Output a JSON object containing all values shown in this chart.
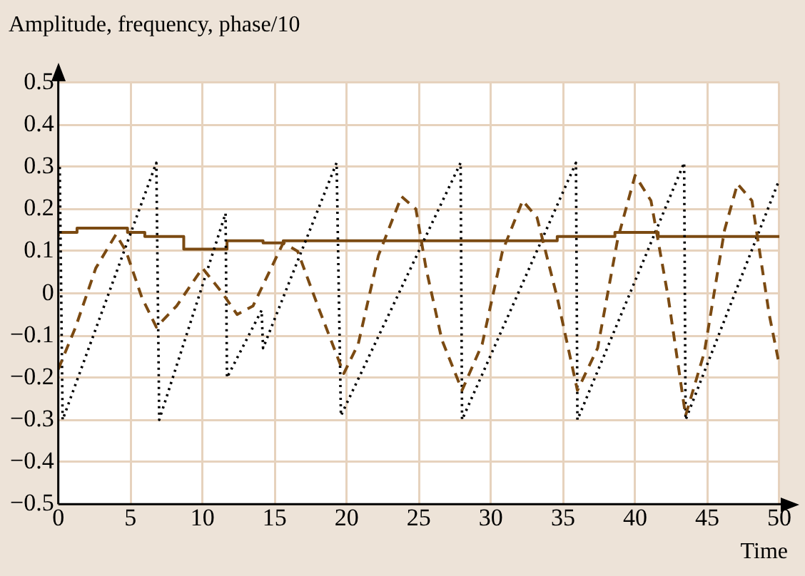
{
  "chart_data": {
    "type": "line",
    "ylabel": "Amplitude, frequency, phase/10",
    "xlabel": "Time",
    "xlim": [
      0,
      50
    ],
    "xticks": [
      0,
      5,
      10,
      15,
      20,
      25,
      30,
      35,
      40,
      45,
      50
    ],
    "ylim": [
      -0.5,
      0.5
    ],
    "yticks": [
      {
        "value": -0.5,
        "label": "−0.5"
      },
      {
        "value": -0.4,
        "label": "−0.4"
      },
      {
        "value": -0.3,
        "label": "−0.3"
      },
      {
        "value": -0.2,
        "label": "−0.2"
      },
      {
        "value": -0.1,
        "label": "−0.1"
      },
      0,
      0.1,
      0.2,
      0.3,
      0.4,
      0.5
    ],
    "grid": true,
    "marker": "none",
    "series": [
      {
        "type": "line",
        "line_style": "dashed",
        "color": "#7b4a12",
        "x": [
          0,
          1.2,
          2.6,
          4.0,
          4.7,
          5.8,
          6.8,
          8.2,
          10,
          11.4,
          12.4,
          13.5,
          15.6,
          16.6,
          18,
          19.8,
          20.8,
          22.2,
          23.8,
          24.8,
          25.5,
          26.6,
          28,
          29.4,
          30.8,
          32.2,
          33.2,
          34.6,
          36,
          37.4,
          38.8,
          40,
          41.1,
          42.3,
          43.5,
          44.8,
          46.2,
          47.1,
          48.1,
          49.3,
          50
        ],
        "values": [
          -0.18,
          -0.08,
          0.06,
          0.14,
          0.1,
          -0.01,
          -0.08,
          -0.03,
          0.06,
          0.0,
          -0.05,
          -0.03,
          0.12,
          0.1,
          -0.03,
          -0.19,
          -0.12,
          0.09,
          0.23,
          0.2,
          0.06,
          -0.11,
          -0.23,
          -0.12,
          0.1,
          0.22,
          0.18,
          -0.01,
          -0.23,
          -0.13,
          0.13,
          0.28,
          0.22,
          -0.01,
          -0.29,
          -0.14,
          0.15,
          0.26,
          0.22,
          -0.05,
          -0.17
        ]
      },
      {
        "type": "line",
        "line_style": "dotted",
        "color": "#000000",
        "x": [
          0.1,
          0.3,
          6.8,
          7.0,
          11.6,
          11.7,
          14.1,
          14.2,
          19.3,
          19.6,
          27.9,
          28.0,
          35.9,
          36.0,
          43.4,
          43.5,
          50
        ],
        "values": [
          0.3,
          -0.3,
          0.31,
          -0.3,
          0.19,
          -0.2,
          -0.04,
          -0.13,
          0.31,
          -0.29,
          0.31,
          -0.3,
          0.31,
          -0.3,
          0.31,
          -0.3,
          0.27
        ]
      },
      {
        "type": "step",
        "line_style": "solid",
        "color": "#7b4a12",
        "x": [
          0,
          1.3,
          4.8,
          6,
          8.7,
          11.7,
          14.2,
          15.6,
          34.6,
          38.6,
          41.6,
          47.7,
          50
        ],
        "values": [
          0.135,
          0.145,
          0.155,
          0.145,
          0.135,
          0.105,
          0.125,
          0.12,
          0.125,
          0.135,
          0.145,
          0.135,
          0.135
        ]
      }
    ]
  }
}
